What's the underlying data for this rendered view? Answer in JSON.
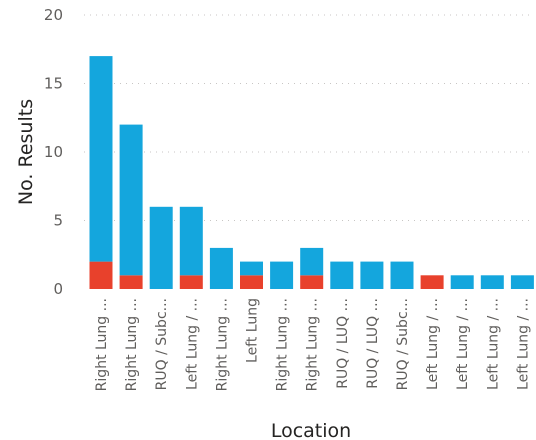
{
  "chart_data": {
    "type": "bar",
    "stacked": true,
    "xlabel": "Location",
    "ylabel": "No. Results",
    "ylim": [
      0,
      20
    ],
    "yticks": [
      0,
      5,
      10,
      15,
      20
    ],
    "grid": true,
    "categories": [
      "Right Lung ...",
      "Right Lung ...",
      "RUQ / Subc...",
      "Left Lung / ...",
      "Right Lung ...",
      "Left Lung",
      "Right Lung ...",
      "Right Lung ...",
      "RUQ / LUQ ...",
      "RUQ / LUQ ...",
      "RUQ / Subc...",
      "Left Lung / ...",
      "Left Lung / ...",
      "Left Lung / ...",
      "Left Lung / ..."
    ],
    "series": [
      {
        "color": "#e8412c",
        "values": [
          2,
          1,
          0,
          1,
          0,
          1,
          0,
          1,
          0,
          0,
          0,
          1,
          0,
          0,
          0
        ]
      },
      {
        "color": "#14a6dd",
        "values": [
          15,
          11,
          6,
          5,
          3,
          1,
          2,
          2,
          2,
          2,
          2,
          0,
          1,
          1,
          1
        ]
      }
    ]
  }
}
